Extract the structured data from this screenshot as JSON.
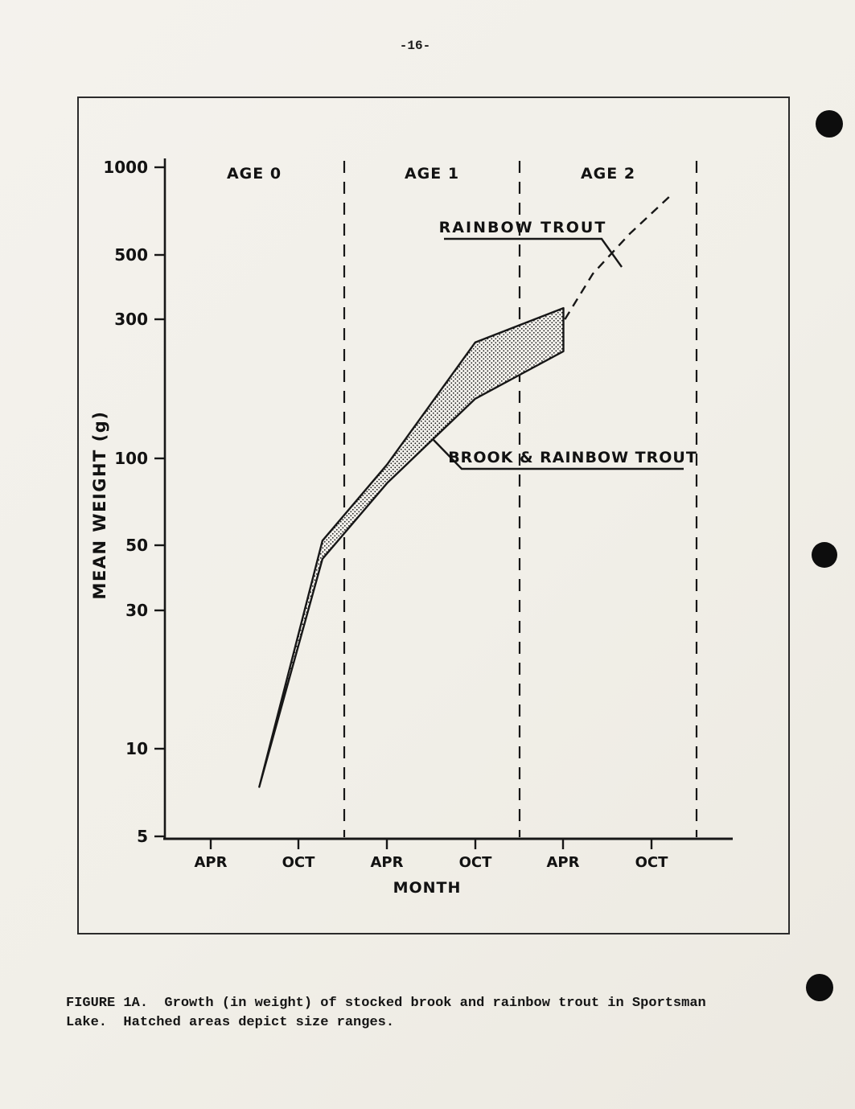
{
  "page": {
    "number": "-16-",
    "caption": {
      "line1": "FIGURE 1A.  Growth (in weight) of stocked brook and rainbow trout in Sportsman",
      "line2": "Lake.  Hatched areas depict size ranges."
    }
  },
  "chart_data": {
    "type": "line",
    "title": "FIGURE 1A. Growth (in weight) of stocked brook and rainbow trout in Sportsman Lake",
    "xlabel": "MONTH",
    "ylabel": "MEAN WEIGHT (g)",
    "y_scale": "log",
    "ylim": [
      5,
      1000
    ],
    "grid": false,
    "yticks": [
      1000,
      500,
      300,
      100,
      50,
      30,
      10,
      5
    ],
    "ytick_labels": [
      "1000",
      "500",
      "300",
      "100",
      "50",
      "30",
      "10",
      "5"
    ],
    "xtick_labels": [
      "APR",
      "OCT",
      "APR",
      "OCT",
      "APR",
      "OCT"
    ],
    "age_labels": [
      "AGE 0",
      "AGE 1",
      "AGE 2"
    ],
    "annotations": {
      "rainbow": "RAINBOW TROUT",
      "brook": "BROOK & RAINBOW TROUT"
    },
    "series": [
      {
        "key": "band_lower",
        "name": "Brook & rainbow trout — size-range lower bound",
        "months": [
          3.3,
          7.6,
          12,
          18,
          24
        ],
        "weights_g": [
          7.4,
          45,
          82,
          160,
          233
        ]
      },
      {
        "key": "band_upper",
        "name": "Brook & rainbow trout — size-range upper bound",
        "months": [
          3.3,
          7.6,
          12,
          18,
          24
        ],
        "weights_g": [
          7.4,
          52,
          95,
          250,
          328
        ]
      },
      {
        "key": "rainbow_projection",
        "name": "Rainbow trout — continued growth (dashed)",
        "months": [
          24.1,
          26,
          28.5,
          31.3
        ],
        "weights_g": [
          300,
          430,
          590,
          800
        ]
      }
    ]
  }
}
